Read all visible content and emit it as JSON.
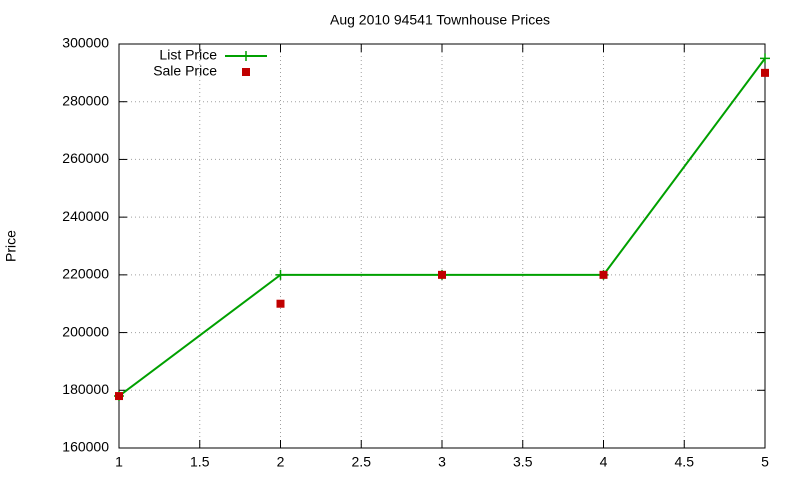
{
  "chart_data": {
    "type": "line",
    "title": "Aug 2010 94541 Townhouse Prices",
    "y_label": "Price",
    "x": [
      1,
      2,
      3,
      4,
      5
    ],
    "series": [
      {
        "name": "List Price",
        "color": "#00a000",
        "style": "linespoints",
        "marker": "plus",
        "values": [
          178000,
          220000,
          220000,
          220000,
          295000
        ]
      },
      {
        "name": "Sale Price",
        "color": "#c00000",
        "style": "points",
        "marker": "square",
        "values": [
          178000,
          210000,
          220000,
          220000,
          290000
        ]
      }
    ],
    "xlim": [
      1,
      5
    ],
    "xticks": [
      1,
      1.5,
      2,
      2.5,
      3,
      3.5,
      4,
      4.5,
      5
    ],
    "ylim": [
      160000,
      300000
    ],
    "yticks": [
      160000,
      180000,
      200000,
      220000,
      240000,
      260000,
      280000,
      300000
    ],
    "grid": true,
    "legend": "top-left"
  }
}
